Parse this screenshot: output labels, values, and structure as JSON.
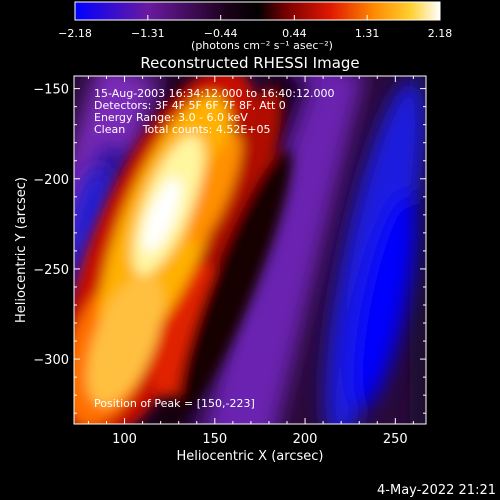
{
  "colorbar": {
    "tick_labels": [
      "-2.18",
      "-1.31",
      "-0.44",
      "0.44",
      "1.31",
      "2.18"
    ],
    "min": -2.18,
    "max": 2.18,
    "unit_label": "(photons cm⁻² s⁻¹ asec⁻²)"
  },
  "chart_data": {
    "type": "heatmap",
    "title": "Reconstructed RHESSI Image",
    "xlabel": "Heliocentric X (arcsec)",
    "ylabel": "Heliocentric Y (arcsec)",
    "xlim": [
      72,
      267
    ],
    "ylim": [
      -336,
      -143
    ],
    "x_ticks": [
      100,
      150,
      200,
      250
    ],
    "y_ticks": [
      -150,
      -200,
      -250,
      -300
    ],
    "x_tick_labels": [
      "100",
      "150",
      "200",
      "250"
    ],
    "y_tick_labels": [
      "−150",
      "−200",
      "−250",
      "−300"
    ],
    "value_range": [
      -2.18,
      2.18
    ],
    "colormap": "rhessi-diverging-blue-purple-black-red-orange-yellow-white",
    "peak": [
      150,
      -223
    ],
    "annotations": {
      "time_range": "15-Aug-2003 16:34:12.000 to 16:40:12.000",
      "detectors": "Detectors: 3F 4F 5F 6F 7F 8F, Att 0",
      "energy": "Energy Range: 3.0 - 6.0 keV",
      "clean": "Clean     Total counts: 4.52E+05",
      "peak_text": "Position of Peak = [150,-223]"
    }
  },
  "footer": {
    "timestamp": "4-May-2022 21:21"
  }
}
